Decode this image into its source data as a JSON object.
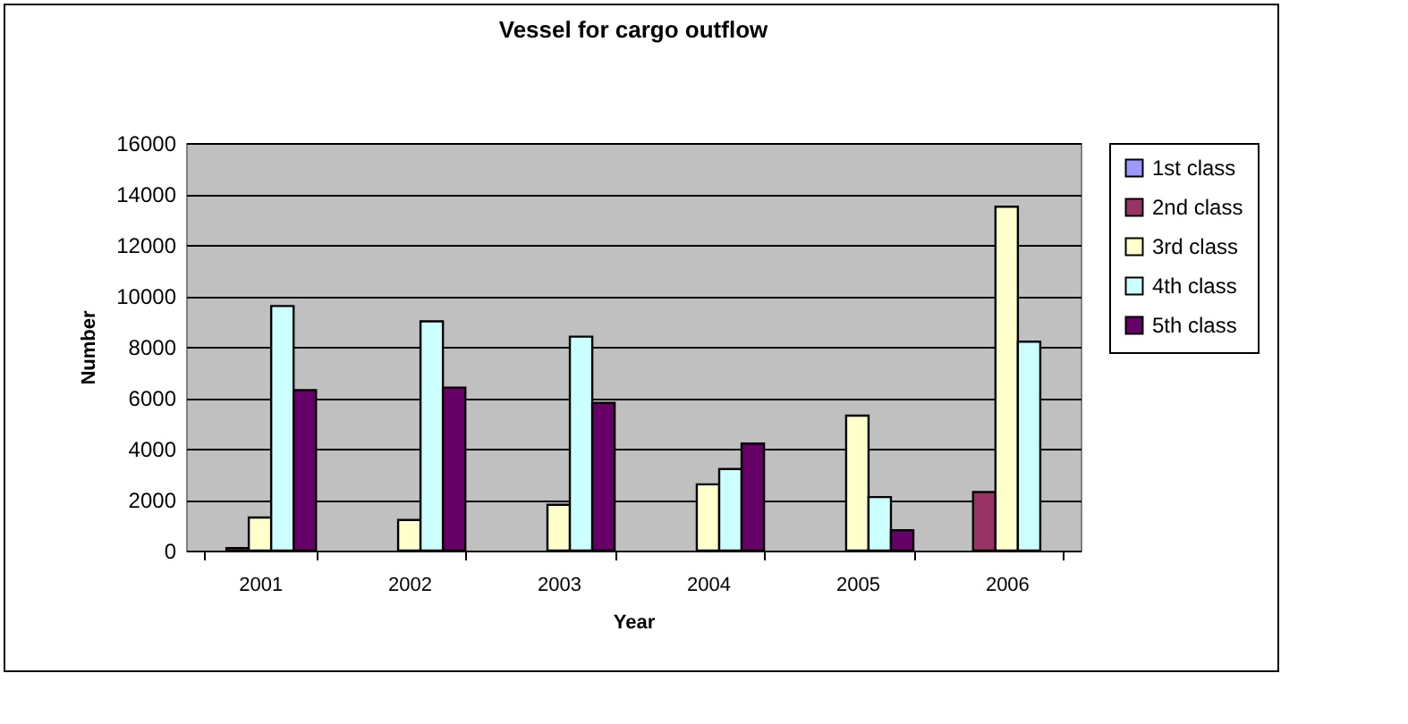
{
  "chart_data": {
    "type": "bar",
    "title": "Vessel for cargo outflow",
    "xlabel": "Year",
    "ylabel": "Number",
    "categories": [
      "2001",
      "2002",
      "2003",
      "2004",
      "2005",
      "2006"
    ],
    "series": [
      {
        "name": "1st class",
        "color": "#9999ff",
        "values": [
          null,
          null,
          null,
          null,
          null,
          null
        ]
      },
      {
        "name": "2nd class",
        "color": "#993366",
        "values": [
          100,
          null,
          null,
          null,
          null,
          2300
        ]
      },
      {
        "name": "3rd class",
        "color": "#ffffcc",
        "values": [
          1300,
          1200,
          1800,
          2600,
          5300,
          13500
        ]
      },
      {
        "name": "4th class",
        "color": "#ccffff",
        "values": [
          9600,
          9000,
          8400,
          3200,
          2100,
          8200
        ]
      },
      {
        "name": "5th class",
        "color": "#660066",
        "values": [
          6300,
          6400,
          5800,
          4200,
          800,
          null
        ]
      }
    ],
    "ylim": [
      0,
      16000
    ],
    "yticks": [
      0,
      2000,
      4000,
      6000,
      8000,
      10000,
      12000,
      14000,
      16000
    ],
    "grid": "y",
    "legend": "right"
  }
}
